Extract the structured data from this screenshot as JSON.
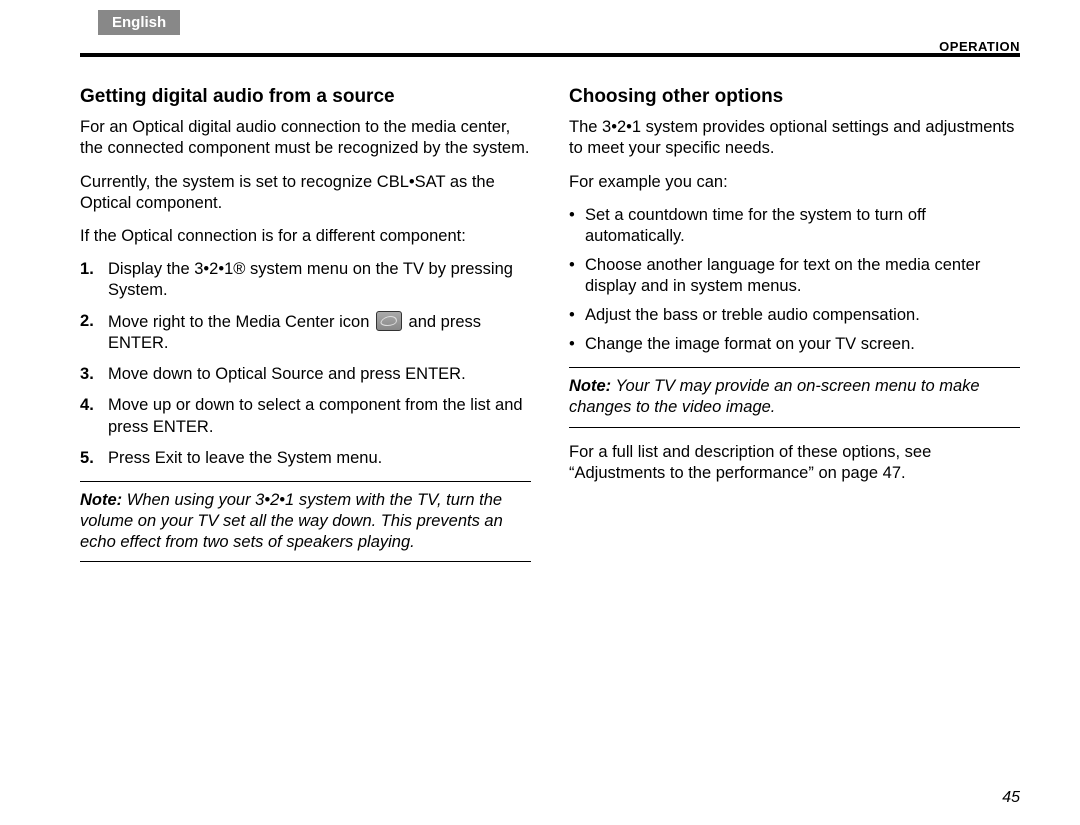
{
  "header": {
    "language_tab": "English",
    "section_label": "OPERATION"
  },
  "left": {
    "heading": "Getting digital audio from a source",
    "p1": "For an Optical digital audio connection to the media center, the connected component must be recognized by the system.",
    "p2": "Currently, the system is set to recognize CBL•SAT as the Optical component.",
    "p3": "If the Optical connection is for a different component:",
    "steps": {
      "s1": "Display the 3•2•1® system menu on the TV by pressing System.",
      "s2a": "Move right to the Media Center icon ",
      "s2b": " and press ENTER.",
      "s3": "Move down to Optical Source and press ENTER.",
      "s4": "Move up or down to select a component from the list and press ENTER.",
      "s5": "Press Exit to leave the System menu."
    },
    "note_label": "Note:",
    "note_text": " When using your 3•2•1 system with the TV, turn the volume on your TV set all the way down. This prevents an echo effect from two sets of speakers playing."
  },
  "right": {
    "heading": "Choosing other options",
    "p1": "The 3•2•1 system provides optional settings and adjustments to meet your specific needs.",
    "p2": "For example you can:",
    "bullets": {
      "b1": "Set a countdown time for the system to turn off automatically.",
      "b2": "Choose another language for text on the media center display and in system menus.",
      "b3": "Adjust the bass or treble audio compensation.",
      "b4": "Change the image format on your TV screen."
    },
    "note_label": "Note:",
    "note_text": " Your TV may provide an on-screen menu to make changes to the video image.",
    "p3": "For a full list and description of these options, see “Adjustments to the performance” on page 47."
  },
  "page_number": "45"
}
